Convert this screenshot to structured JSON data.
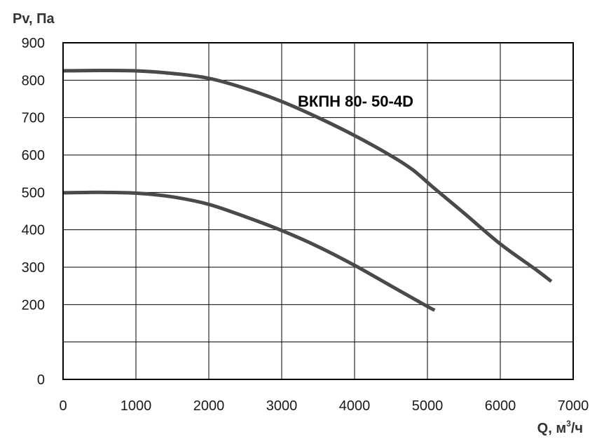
{
  "chart_data": {
    "type": "line",
    "title": "ВКПН 80- 50-4D",
    "ylabel": "Pv, Па",
    "xlabel_main": "Q, м",
    "xlabel_sup": "3",
    "xlabel_tail": "/ч",
    "xlim": [
      0,
      7000
    ],
    "ylim": [
      0,
      900
    ],
    "x_ticks": [
      0,
      1000,
      2000,
      3000,
      4000,
      5000,
      6000,
      7000
    ],
    "x_tick_labels": [
      "0",
      "1000",
      "2000",
      "3000",
      "4000",
      "5000",
      "6000",
      "7000"
    ],
    "y_ticks": [
      0,
      200,
      300,
      400,
      500,
      600,
      700,
      800,
      900
    ],
    "y_tick_labels": [
      "0",
      "200",
      "300",
      "400",
      "500",
      "600",
      "700",
      "800",
      "900"
    ],
    "y_gridlines": [
      100,
      200,
      300,
      400,
      500,
      600,
      700,
      800
    ],
    "grid": true,
    "colors": {
      "curve": "#4a4a4a",
      "grid": "#000000"
    },
    "series": [
      {
        "x": [
          0,
          500,
          1000,
          1500,
          2000,
          2500,
          3000,
          3500,
          4000,
          4500,
          4800,
          5100,
          5500,
          6000,
          6500,
          6700
        ],
        "y": [
          825,
          826,
          825,
          818,
          805,
          778,
          743,
          700,
          652,
          598,
          560,
          510,
          445,
          362,
          292,
          262
        ]
      },
      {
        "x": [
          0,
          500,
          1000,
          1500,
          2000,
          2500,
          3000,
          3500,
          4000,
          4500,
          5000,
          5100
        ],
        "y": [
          499,
          500,
          498,
          488,
          468,
          435,
          398,
          355,
          305,
          250,
          195,
          185
        ]
      }
    ]
  }
}
